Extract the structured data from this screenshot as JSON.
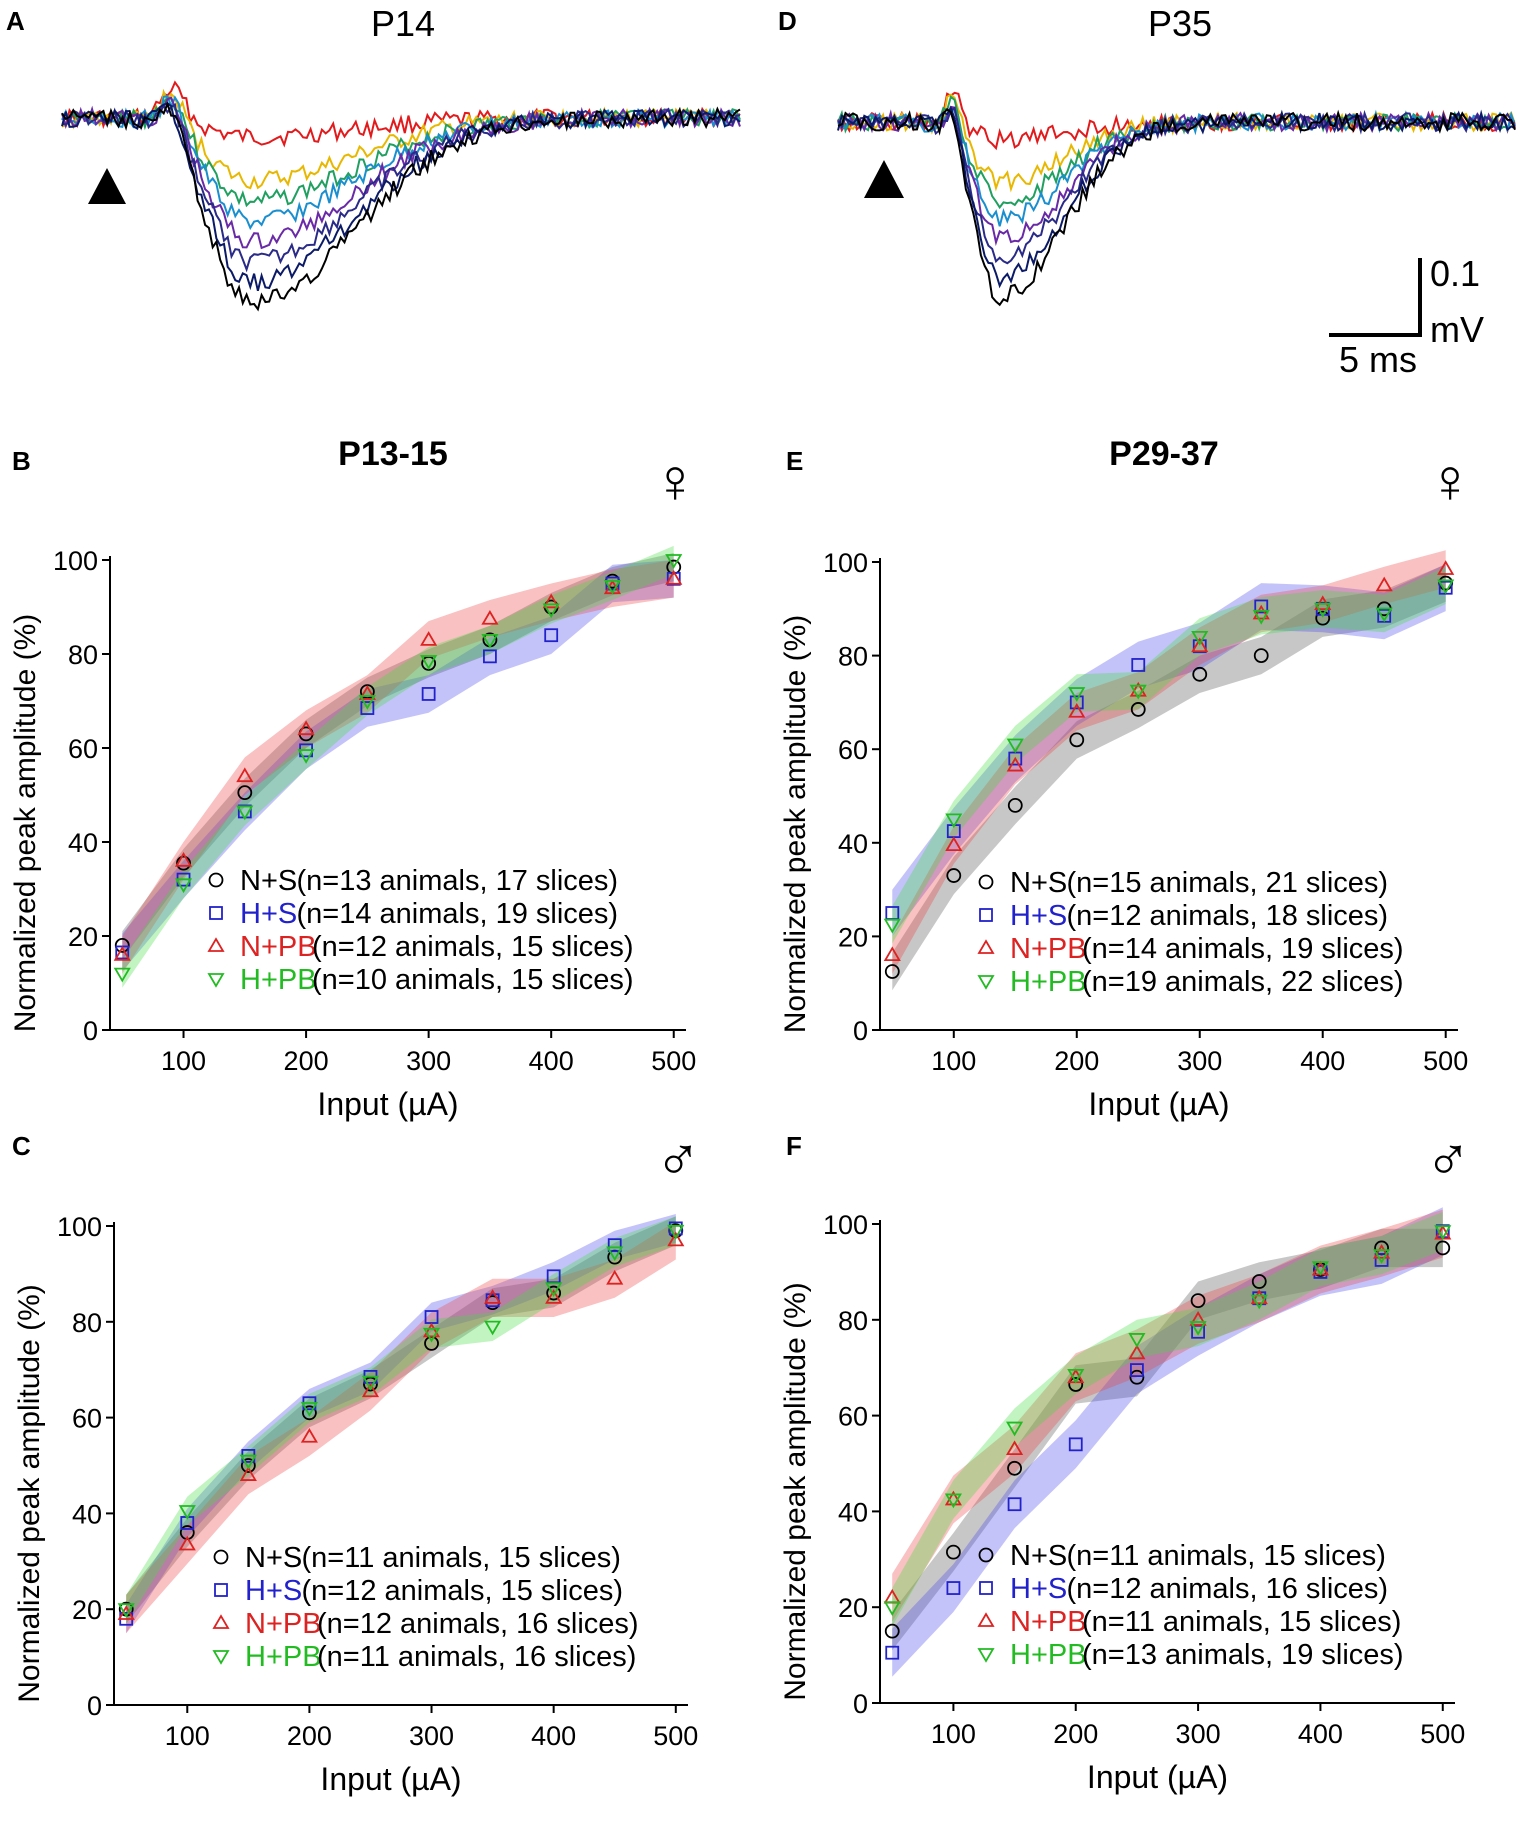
{
  "colors": {
    "ns": "#000000",
    "hs": "#2222cc",
    "npb": "#dd2222",
    "hpb": "#22bb22",
    "band_ns": "#555555",
    "band_hs": "#4a4aee",
    "band_npb": "#ee4444",
    "band_hpb": "#44dd44",
    "traces": [
      "#000000",
      "#0b1a66",
      "#2a2a88",
      "#6a2aa8",
      "#1a8fcf",
      "#20a060",
      "#e8b800",
      "#e31a1c"
    ]
  },
  "traces": [
    {
      "panel": "A",
      "title": "P14",
      "stim_icon": "triangle-up-icon"
    },
    {
      "panel": "D",
      "title": "P35",
      "stim_icon": "triangle-up-icon",
      "scale_bar": {
        "amplitude": "0.1",
        "amplitude_unit": "mV",
        "time": "5 ms"
      }
    }
  ],
  "chart_data": [
    {
      "panel": "B",
      "type": "scatter",
      "title": "P13-15",
      "sex_symbol": "♀",
      "xlabel": "Input (µA)",
      "ylabel": "Normalized peak amplitude (%)",
      "xlim": [
        40,
        510
      ],
      "ylim": [
        0,
        100
      ],
      "xticks": [
        "100",
        "200",
        "300",
        "400",
        "500"
      ],
      "yticks": [
        "0",
        "20",
        "40",
        "60",
        "80",
        "100"
      ],
      "x": [
        50,
        100,
        150,
        200,
        250,
        300,
        350,
        400,
        450,
        500
      ],
      "series": [
        {
          "name": "N+S",
          "marker": "circle",
          "legend": "(n=13 animals, 17 slices)",
          "values": [
            18,
            35.5,
            50.5,
            63,
            72,
            78,
            83,
            90,
            95.5,
            98.5
          ],
          "band": 3
        },
        {
          "name": "H+S",
          "marker": "square",
          "legend": "(n=14 animals, 19 slices)",
          "values": [
            16.5,
            32,
            46.5,
            59.5,
            68.5,
            71.5,
            79.5,
            84,
            95,
            96
          ],
          "band": 4
        },
        {
          "name": "N+PB",
          "marker": "triangle-up",
          "legend": "(n=12 animals, 15 slices)",
          "values": [
            16,
            36,
            54,
            64,
            71.5,
            83,
            87.5,
            91,
            94,
            96
          ],
          "band": 4
        },
        {
          "name": "H+PB",
          "marker": "triangle-down",
          "legend": "(n=10 animals, 15 slices)",
          "values": [
            12,
            31,
            46.5,
            58.5,
            70,
            78.5,
            83,
            89.5,
            94.5,
            100
          ],
          "band": 3
        }
      ]
    },
    {
      "panel": "E",
      "type": "scatter",
      "title": "P29-37",
      "sex_symbol": "♀",
      "xlabel": "Input (µA)",
      "ylabel": "Normalized peak amplitude (%)",
      "xlim": [
        40,
        510
      ],
      "ylim": [
        0,
        100
      ],
      "xticks": [
        "100",
        "200",
        "300",
        "400",
        "500"
      ],
      "yticks": [
        "0",
        "20",
        "40",
        "60",
        "80",
        "100"
      ],
      "x": [
        50,
        100,
        150,
        200,
        250,
        300,
        350,
        400,
        450,
        500
      ],
      "series": [
        {
          "name": "N+S",
          "marker": "circle",
          "legend": "(n=15 animals, 21 slices)",
          "values": [
            12.5,
            33,
            48,
            62,
            68.5,
            76,
            80,
            88,
            90,
            95.5
          ],
          "band": 4
        },
        {
          "name": "H+S",
          "marker": "square",
          "legend": "(n=12 animals, 18 slices)",
          "values": [
            25,
            42.5,
            58,
            70,
            78,
            82,
            90.5,
            90,
            88.5,
            94.5
          ],
          "band": 5
        },
        {
          "name": "N+PB",
          "marker": "triangle-up",
          "legend": "(n=14 animals, 19 slices)",
          "values": [
            16,
            39.5,
            56.5,
            68,
            72.5,
            82,
            89,
            91,
            95,
            98.5
          ],
          "band": 4
        },
        {
          "name": "H+PB",
          "marker": "triangle-down",
          "legend": "(n=19 animals, 22 slices)",
          "values": [
            22.5,
            45,
            61,
            72,
            72.5,
            84,
            88.5,
            90,
            89,
            95
          ],
          "band": 4
        }
      ]
    },
    {
      "panel": "C",
      "type": "scatter",
      "title": "",
      "sex_symbol": "♂",
      "xlabel": "Input (µA)",
      "ylabel": "Normalized peak amplitude (%)",
      "xlim": [
        40,
        510
      ],
      "ylim": [
        0,
        100
      ],
      "xticks": [
        "100",
        "200",
        "300",
        "400",
        "500"
      ],
      "yticks": [
        "0",
        "20",
        "40",
        "60",
        "80",
        "100"
      ],
      "x": [
        50,
        100,
        150,
        200,
        250,
        300,
        350,
        400,
        450,
        500
      ],
      "series": [
        {
          "name": "N+S",
          "marker": "circle",
          "legend": "(n=11 animals, 15 slices)",
          "values": [
            20,
            36,
            50,
            61,
            67,
            75.5,
            84,
            86,
            93.5,
            99
          ],
          "band": 3
        },
        {
          "name": "H+S",
          "marker": "square",
          "legend": "(n=12 animals, 15 slices)",
          "values": [
            18,
            38,
            52,
            63,
            68.5,
            81,
            84.5,
            89.5,
            96,
            99.5
          ],
          "band": 3
        },
        {
          "name": "N+PB",
          "marker": "triangle-up",
          "legend": "(n=12 animals, 16 slices)",
          "values": [
            19,
            33.5,
            48,
            56,
            65.5,
            78,
            85,
            85,
            89,
            97
          ],
          "band": 4
        },
        {
          "name": "H+PB",
          "marker": "triangle-down",
          "legend": "(n=11 animals, 16 slices)",
          "values": [
            20,
            40.5,
            51,
            62,
            67.5,
            77.5,
            79,
            87,
            94.5,
            99
          ],
          "band": 3
        }
      ]
    },
    {
      "panel": "F",
      "type": "scatter",
      "title": "",
      "sex_symbol": "♂",
      "xlabel": "Input (µA)",
      "ylabel": "Normalized peak amplitude (%)",
      "xlim": [
        40,
        510
      ],
      "ylim": [
        0,
        100
      ],
      "xticks": [
        "100",
        "200",
        "300",
        "400",
        "500"
      ],
      "yticks": [
        "0",
        "20",
        "40",
        "60",
        "80",
        "100"
      ],
      "x": [
        50,
        100,
        150,
        200,
        250,
        300,
        350,
        400,
        450,
        500
      ],
      "series": [
        {
          "name": "N+S",
          "marker": "circle",
          "legend": "(n=11 animals, 15 slices)",
          "values": [
            15,
            31.5,
            49,
            66.5,
            68,
            84,
            88,
            90.5,
            95,
            95
          ],
          "band": 4
        },
        {
          "name": "H+S",
          "marker": "square",
          "legend": "(n=12 animals, 16 slices)",
          "values": [
            10.5,
            24,
            41.5,
            54,
            69.5,
            77.5,
            84.5,
            90,
            92.5,
            98.5
          ],
          "band": 5
        },
        {
          "name": "N+PB",
          "marker": "triangle-up",
          "legend": "(n=11 animals, 15 slices)",
          "values": [
            22,
            42.5,
            53,
            68,
            73,
            80,
            84.5,
            90.5,
            94,
            98
          ],
          "band": 5
        },
        {
          "name": "H+PB",
          "marker": "triangle-down",
          "legend": "(n=13 animals, 19 slices)",
          "values": [
            20,
            42.5,
            57.5,
            68.5,
            76,
            78.5,
            84,
            91,
            93.5,
            98.5
          ],
          "band": 4
        }
      ]
    }
  ]
}
